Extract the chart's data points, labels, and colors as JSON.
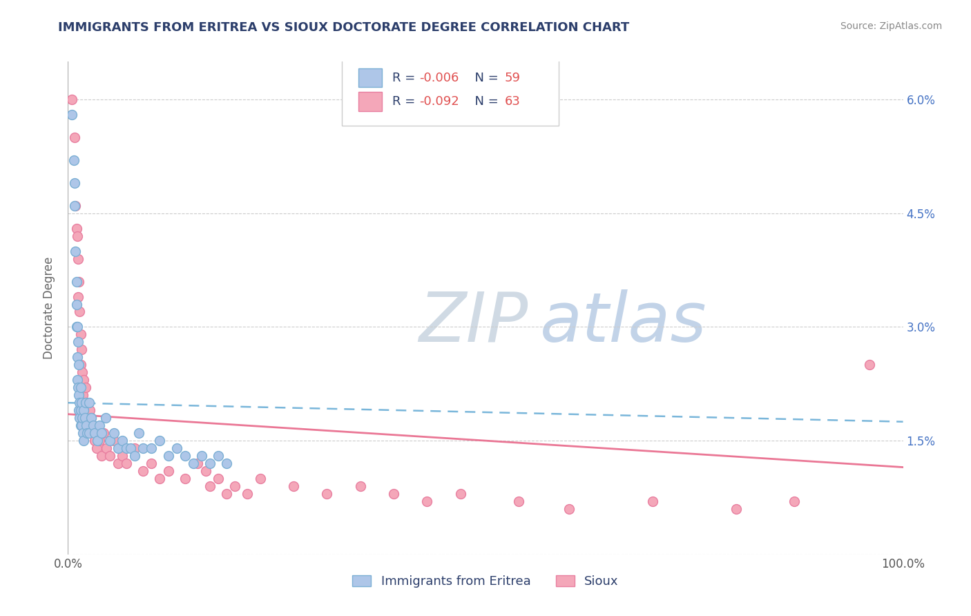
{
  "title": "IMMIGRANTS FROM ERITREA VS SIOUX DOCTORATE DEGREE CORRELATION CHART",
  "source_text": "Source: ZipAtlas.com",
  "ylabel": "Doctorate Degree",
  "legend_label_blue": "Immigrants from Eritrea",
  "legend_label_pink": "Sioux",
  "r_blue": -0.006,
  "n_blue": 59,
  "r_pink": -0.092,
  "n_pink": 63,
  "xmin": 0.0,
  "xmax": 1.0,
  "ymin": 0.0,
  "ymax": 0.065,
  "yticks": [
    0.0,
    0.015,
    0.03,
    0.045,
    0.06
  ],
  "ytick_labels": [
    "",
    "1.5%",
    "3.0%",
    "4.5%",
    "6.0%"
  ],
  "blue_line_y0": 0.02,
  "blue_line_y1": 0.0175,
  "pink_line_y0": 0.0185,
  "pink_line_y1": 0.0115,
  "blue_scatter_x": [
    0.005,
    0.007,
    0.008,
    0.008,
    0.009,
    0.01,
    0.01,
    0.01,
    0.011,
    0.011,
    0.011,
    0.012,
    0.012,
    0.013,
    0.013,
    0.013,
    0.014,
    0.014,
    0.015,
    0.015,
    0.015,
    0.016,
    0.016,
    0.017,
    0.018,
    0.019,
    0.019,
    0.02,
    0.021,
    0.022,
    0.023,
    0.025,
    0.025,
    0.028,
    0.03,
    0.032,
    0.035,
    0.038,
    0.04,
    0.045,
    0.05,
    0.055,
    0.06,
    0.065,
    0.07,
    0.075,
    0.08,
    0.085,
    0.09,
    0.1,
    0.11,
    0.12,
    0.13,
    0.14,
    0.15,
    0.16,
    0.17,
    0.18,
    0.19
  ],
  "blue_scatter_y": [
    0.058,
    0.052,
    0.049,
    0.046,
    0.04,
    0.036,
    0.033,
    0.03,
    0.03,
    0.026,
    0.023,
    0.028,
    0.022,
    0.025,
    0.021,
    0.019,
    0.02,
    0.018,
    0.022,
    0.019,
    0.017,
    0.02,
    0.017,
    0.018,
    0.016,
    0.019,
    0.015,
    0.018,
    0.02,
    0.017,
    0.016,
    0.02,
    0.016,
    0.018,
    0.017,
    0.016,
    0.015,
    0.017,
    0.016,
    0.018,
    0.015,
    0.016,
    0.014,
    0.015,
    0.014,
    0.014,
    0.013,
    0.016,
    0.014,
    0.014,
    0.015,
    0.013,
    0.014,
    0.013,
    0.012,
    0.013,
    0.012,
    0.013,
    0.012
  ],
  "pink_scatter_x": [
    0.005,
    0.008,
    0.009,
    0.01,
    0.011,
    0.012,
    0.012,
    0.013,
    0.014,
    0.015,
    0.015,
    0.016,
    0.017,
    0.018,
    0.019,
    0.02,
    0.021,
    0.022,
    0.023,
    0.024,
    0.025,
    0.026,
    0.027,
    0.028,
    0.03,
    0.032,
    0.034,
    0.036,
    0.038,
    0.04,
    0.043,
    0.046,
    0.05,
    0.055,
    0.06,
    0.065,
    0.07,
    0.08,
    0.09,
    0.1,
    0.11,
    0.12,
    0.14,
    0.155,
    0.165,
    0.17,
    0.18,
    0.19,
    0.2,
    0.215,
    0.23,
    0.27,
    0.31,
    0.35,
    0.39,
    0.43,
    0.47,
    0.54,
    0.6,
    0.7,
    0.8,
    0.87,
    0.96
  ],
  "pink_scatter_y": [
    0.06,
    0.055,
    0.046,
    0.043,
    0.042,
    0.039,
    0.034,
    0.036,
    0.032,
    0.029,
    0.025,
    0.027,
    0.024,
    0.021,
    0.023,
    0.02,
    0.022,
    0.019,
    0.02,
    0.018,
    0.017,
    0.019,
    0.016,
    0.018,
    0.017,
    0.015,
    0.014,
    0.016,
    0.015,
    0.013,
    0.016,
    0.014,
    0.013,
    0.015,
    0.012,
    0.013,
    0.012,
    0.014,
    0.011,
    0.012,
    0.01,
    0.011,
    0.01,
    0.012,
    0.011,
    0.009,
    0.01,
    0.008,
    0.009,
    0.008,
    0.01,
    0.009,
    0.008,
    0.009,
    0.008,
    0.007,
    0.008,
    0.007,
    0.006,
    0.007,
    0.006,
    0.007,
    0.025
  ],
  "bg_color": "#ffffff",
  "grid_color": "#cccccc",
  "blue_dot_fill": "#aec6e8",
  "blue_dot_edge": "#7bafd4",
  "pink_dot_fill": "#f4a7b9",
  "pink_dot_edge": "#e87fa0",
  "blue_line_color": "#6baed6",
  "pink_line_color": "#e8688a",
  "title_color": "#2c3e6b",
  "axis_label_color": "#666666",
  "tick_color": "#555555",
  "watermark_zip_color": "#c8d4e0",
  "watermark_atlas_color": "#b8cce4",
  "source_color": "#888888",
  "legend_text_dark": "#2c3e6b",
  "legend_value_color": "#e05050"
}
